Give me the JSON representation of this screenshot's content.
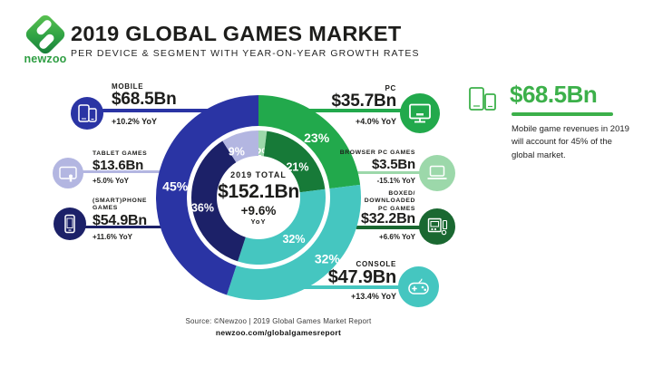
{
  "palette": {
    "blue": "#2A34A4",
    "navy": "#1C2168",
    "lavender": "#B3B6E1",
    "green": "#22A94C",
    "mint": "#9CD8AA",
    "darkgreen": "#177A38",
    "deepgreen": "#1A6831",
    "teal": "#45C6C0",
    "brand": "#3CB04A"
  },
  "header": {
    "logo_text": "newzoo",
    "title": "2019 GLOBAL GAMES MARKET",
    "subtitle": "PER DEVICE & SEGMENT WITH YEAR-ON-YEAR GROWTH RATES"
  },
  "chart_data": {
    "type": "pie",
    "subtype": "double-ring-donut",
    "title": "2019 Global Games Market per Device & Segment with Year-on-Year Growth Rates",
    "total": {
      "label": "2019 TOTAL",
      "value": "$152.1Bn",
      "growth": "+9.6%",
      "unit": "YoY"
    },
    "rings": [
      {
        "name": "devices (outer ring)",
        "segments": [
          {
            "label": "PC",
            "pct": 23,
            "value_bn": 35.7,
            "yoy": "+4.0%",
            "color": "green"
          },
          {
            "label": "Console",
            "pct": 32,
            "value_bn": 47.9,
            "yoy": "+13.4%",
            "color": "teal"
          },
          {
            "label": "Mobile",
            "pct": 45,
            "value_bn": 68.5,
            "yoy": "+10.2%",
            "color": "blue"
          }
        ]
      },
      {
        "name": "segments (inner ring)",
        "segments": [
          {
            "label": "Browser PC Games",
            "pct": 2,
            "value_bn": 3.5,
            "yoy": "-15.1%",
            "color": "mint"
          },
          {
            "label": "Boxed/Downloaded PC Games",
            "pct": 21,
            "value_bn": 32.2,
            "yoy": "+6.6%",
            "color": "darkgreen"
          },
          {
            "label": "Console",
            "pct": 32,
            "value_bn": 47.9,
            "yoy": "+13.4%",
            "color": "teal"
          },
          {
            "label": "(Smart)phone Games",
            "pct": 36,
            "value_bn": 54.9,
            "yoy": "+11.6%",
            "color": "navy"
          },
          {
            "label": "Tablet Games",
            "pct": 9,
            "value_bn": 13.6,
            "yoy": "+5.0%",
            "color": "lavender"
          }
        ]
      }
    ],
    "layout": {
      "legend": "callouts around donut",
      "grid": false
    }
  },
  "callouts": {
    "mobile": {
      "label": "MOBILE",
      "value": "$68.5Bn",
      "yoy": "+10.2% YoY"
    },
    "tablet": {
      "label": "TABLET GAMES",
      "value": "$13.6Bn",
      "yoy": "+5.0% YoY"
    },
    "smartphone": {
      "label": "(SMART)PHONE\nGAMES",
      "value": "$54.9Bn",
      "yoy": "+11.6% YoY"
    },
    "pc": {
      "label": "PC",
      "value": "$35.7Bn",
      "yoy": "+4.0% YoY"
    },
    "browser": {
      "label": "BROWSER PC GAMES",
      "value": "$3.5Bn",
      "yoy": "-15.1% YoY"
    },
    "boxed": {
      "label": "BOXED/\nDOWNLOADED\nPC GAMES",
      "value": "$32.2Bn",
      "yoy": "+6.6% YoY"
    },
    "console": {
      "label": "CONSOLE",
      "value": "$47.9Bn",
      "yoy": "+13.4% YoY"
    }
  },
  "highlight": {
    "value": "$68.5Bn",
    "text": "Mobile game revenues in 2019 will account for 45% of the global market."
  },
  "footer": {
    "source": "Source: ©Newzoo | 2019 Global Games Market Report",
    "url": "newzoo.com/globalgamesreport"
  }
}
